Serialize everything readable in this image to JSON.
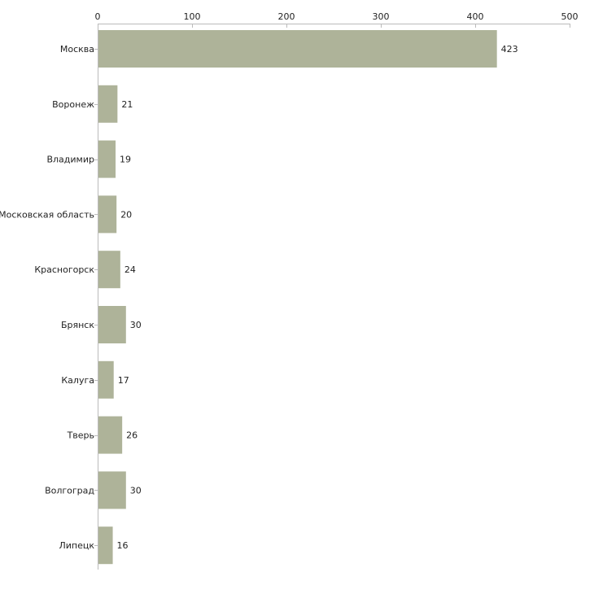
{
  "chart_data": {
    "type": "bar",
    "orientation": "horizontal",
    "title": "",
    "xlabel": "",
    "ylabel": "",
    "axis_position": "top",
    "xlim": [
      0,
      500
    ],
    "ticks": [
      0,
      100,
      200,
      300,
      400,
      500
    ],
    "categories": [
      "Москва",
      "Воронеж",
      "Владимир",
      "Московская область",
      "Красногорск",
      "Брянск",
      "Калуга",
      "Тверь",
      "Волгоград",
      "Липецк"
    ],
    "values": [
      423,
      21,
      19,
      20,
      24,
      30,
      17,
      26,
      30,
      16
    ],
    "grid": false,
    "bar_color": "#aeb399",
    "axis_color": "#bbbbbb"
  }
}
